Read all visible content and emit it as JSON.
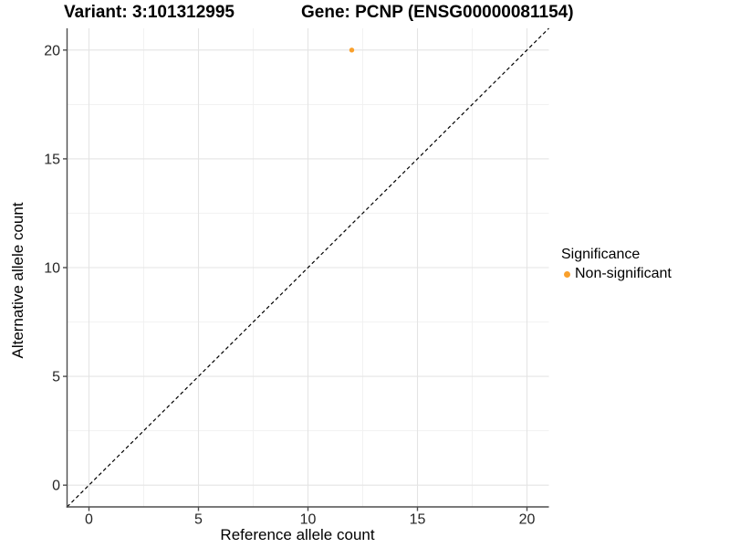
{
  "chart_data": {
    "type": "scatter",
    "titles": {
      "left": "Variant: 3:101312995",
      "right": "Gene: PCNP (ENSG00000081154)"
    },
    "xlabel": "Reference allele count",
    "ylabel": "Alternative allele count",
    "xlim": [
      -1,
      21
    ],
    "ylim": [
      -1,
      21
    ],
    "x_ticks": [
      0,
      5,
      10,
      15,
      20
    ],
    "y_ticks": [
      0,
      5,
      10,
      15,
      20
    ],
    "x_minor_ticks": [
      2.5,
      7.5,
      12.5,
      17.5
    ],
    "y_minor_ticks": [
      2.5,
      7.5,
      12.5,
      17.5
    ],
    "grid": true,
    "series": [
      {
        "name": "Non-significant",
        "color": "#F9A02C",
        "points": [
          {
            "x": 12,
            "y": 20
          }
        ]
      }
    ],
    "reference_line": {
      "slope": 1,
      "intercept": 0,
      "style": "dashed",
      "color": "#000000"
    },
    "legend": {
      "title": "Significance",
      "position": "right",
      "entries": [
        {
          "label": "Non-significant",
          "color": "#F9A02C"
        }
      ]
    },
    "colors": {
      "grid_major": "#E4E4E4",
      "grid_minor": "#F1F1F1",
      "axis": "#4D4D4D",
      "tick_label": "#262626",
      "background": "#FFFFFF"
    }
  }
}
